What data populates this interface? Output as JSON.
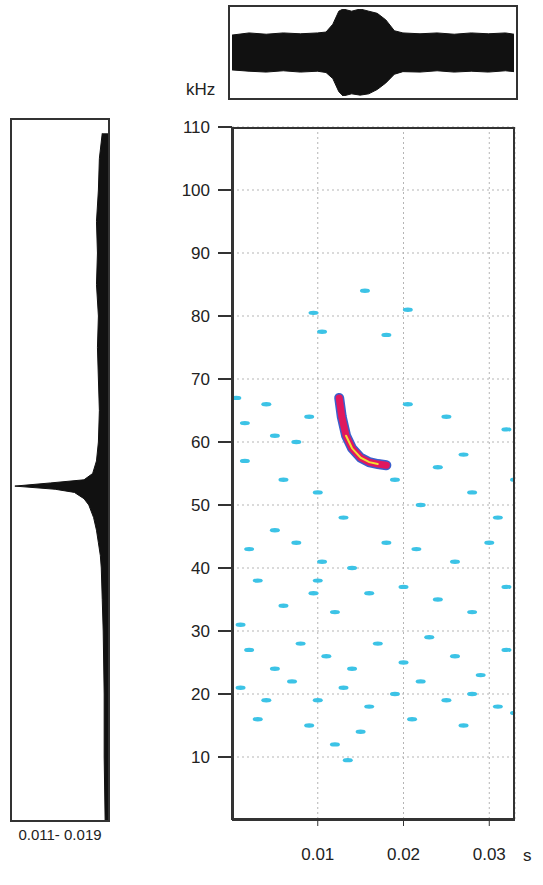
{
  "chart_data": [
    {
      "type": "area",
      "x": [
        0,
        0.002,
        0.004,
        0.006,
        0.008,
        0.01,
        0.011,
        0.0118,
        0.0125,
        0.013,
        0.014,
        0.015,
        0.016,
        0.017,
        0.018,
        0.019,
        0.02,
        0.022,
        0.024,
        0.026,
        0.028,
        0.03,
        0.032,
        0.033
      ],
      "upper": [
        0.4,
        0.45,
        0.42,
        0.45,
        0.43,
        0.45,
        0.47,
        0.65,
        0.95,
        1,
        0.95,
        1,
        0.95,
        0.9,
        0.75,
        0.5,
        0.45,
        0.43,
        0.45,
        0.42,
        0.45,
        0.43,
        0.45,
        0.42
      ],
      "lower": [
        -0.4,
        -0.43,
        -0.45,
        -0.42,
        -0.45,
        -0.43,
        -0.46,
        -0.6,
        -0.9,
        -1,
        -0.95,
        -0.98,
        -0.95,
        -0.85,
        -0.7,
        -0.5,
        -0.44,
        -0.45,
        -0.42,
        -0.45,
        -0.43,
        -0.45,
        -0.42,
        -0.44
      ],
      "xlim": [
        0,
        0.033
      ],
      "ylim": [
        -1,
        1
      ],
      "color": "#111111",
      "tick_labels": false
    },
    {
      "type": "area",
      "orientation": "horizontal",
      "x_label": "0.011- 0.019",
      "x": [
        1,
        5,
        10,
        15,
        20,
        25,
        30,
        35,
        40,
        45,
        50,
        53,
        55,
        56,
        56.5,
        57,
        57.5,
        58,
        59,
        60,
        62,
        64,
        66,
        68,
        70,
        75,
        80,
        90,
        100,
        110
      ],
      "values": [
        0.06,
        0.09,
        0.1,
        0.12,
        0.11,
        0.12,
        0.1,
        0.11,
        0.1,
        0.09,
        0.1,
        0.12,
        0.16,
        0.25,
        0.6,
        0.97,
        0.55,
        0.35,
        0.25,
        0.2,
        0.15,
        0.12,
        0.1,
        0.08,
        0.07,
        0.06,
        0.05,
        0.04,
        0.04,
        0.03
      ],
      "xlim": [
        0,
        110
      ],
      "ylim": [
        0,
        1
      ],
      "color": "#111111",
      "tick_labels": false
    },
    {
      "type": "scatter",
      "x_label": "s",
      "y_label": "kHz",
      "xlim": [
        0,
        0.033
      ],
      "ylim": [
        0,
        110
      ],
      "xticks": [
        0.01,
        0.02,
        0.03
      ],
      "yticks": [
        10,
        20,
        30,
        40,
        50,
        60,
        70,
        80,
        90,
        100,
        110
      ],
      "grid": true,
      "series": [
        {
          "type": "scatter",
          "marker": "dash",
          "color": "#3cc3e6",
          "x": [
            0.0095,
            0.0205,
            0.0155,
            0.018,
            0.0105,
            0.0005,
            0.0015,
            0.004,
            0.005,
            0.009,
            0.0075,
            0.0205,
            0.025,
            0.032,
            0.027,
            0.0015,
            0.006,
            0.01,
            0.022,
            0.028,
            0.031,
            0.033,
            0.019,
            0.024,
            0.013,
            0.002,
            0.005,
            0.0075,
            0.0105,
            0.0095,
            0.01,
            0.014,
            0.018,
            0.0215,
            0.026,
            0.03,
            0.003,
            0.006,
            0.012,
            0.016,
            0.02,
            0.024,
            0.028,
            0.032,
            0.001,
            0.002,
            0.005,
            0.008,
            0.011,
            0.014,
            0.017,
            0.02,
            0.023,
            0.026,
            0.029,
            0.032,
            0.001,
            0.004,
            0.007,
            0.01,
            0.013,
            0.016,
            0.019,
            0.022,
            0.025,
            0.028,
            0.031,
            0.003,
            0.009,
            0.015,
            0.021,
            0.027,
            0.033,
            0.0135,
            0.012
          ],
          "values": [
            80.5,
            81,
            84,
            77,
            77.5,
            67,
            63,
            66,
            61,
            64,
            60,
            66,
            64,
            62,
            58,
            57,
            54,
            52,
            50,
            52,
            48,
            54,
            54,
            56,
            48,
            43,
            46,
            44,
            41,
            36,
            38,
            40,
            44,
            43,
            41,
            44,
            38,
            34,
            33,
            36,
            37,
            35,
            33,
            37,
            31,
            27,
            24,
            28,
            26,
            24,
            28,
            25,
            29,
            26,
            23,
            27,
            21,
            19,
            22,
            19,
            21,
            18,
            20,
            22,
            19,
            20,
            18,
            16,
            15,
            14,
            16,
            15,
            17,
            9.5,
            12
          ]
        },
        {
          "type": "line",
          "color": "#e0185e",
          "x": [
            0.0125,
            0.0128,
            0.0133,
            0.014,
            0.015,
            0.016,
            0.017,
            0.018
          ],
          "values": [
            67,
            64,
            61,
            59,
            57.5,
            56.8,
            56.5,
            56.3
          ]
        }
      ]
    }
  ]
}
